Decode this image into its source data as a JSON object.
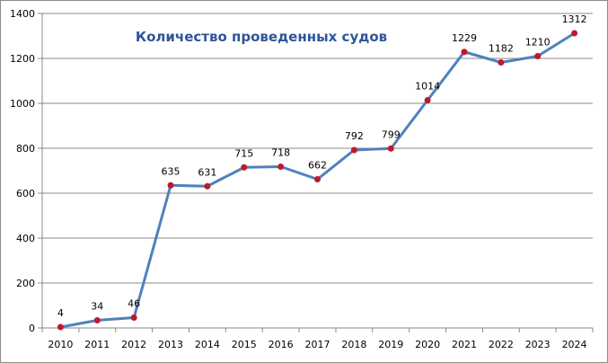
{
  "chart_data": {
    "type": "line",
    "title": "Количество проведенных судов",
    "xlabel": "",
    "ylabel": "",
    "categories": [
      "2010",
      "2011",
      "2012",
      "2013",
      "2014",
      "2015",
      "2016",
      "2017",
      "2018",
      "2019",
      "2020",
      "2021",
      "2022",
      "2023",
      "2024"
    ],
    "series": [
      {
        "values": [
          4,
          34,
          46,
          635,
          631,
          715,
          718,
          662,
          792,
          799,
          1014,
          1229,
          1182,
          1210,
          1312
        ],
        "line_color": "#4f81bd",
        "marker_color": "#c0182a"
      }
    ],
    "ylim": [
      0,
      1400
    ],
    "yticks": [
      0,
      200,
      400,
      600,
      800,
      1000,
      1200,
      1400
    ],
    "data_labels": true,
    "grid": "horizontal",
    "legend": "none"
  }
}
